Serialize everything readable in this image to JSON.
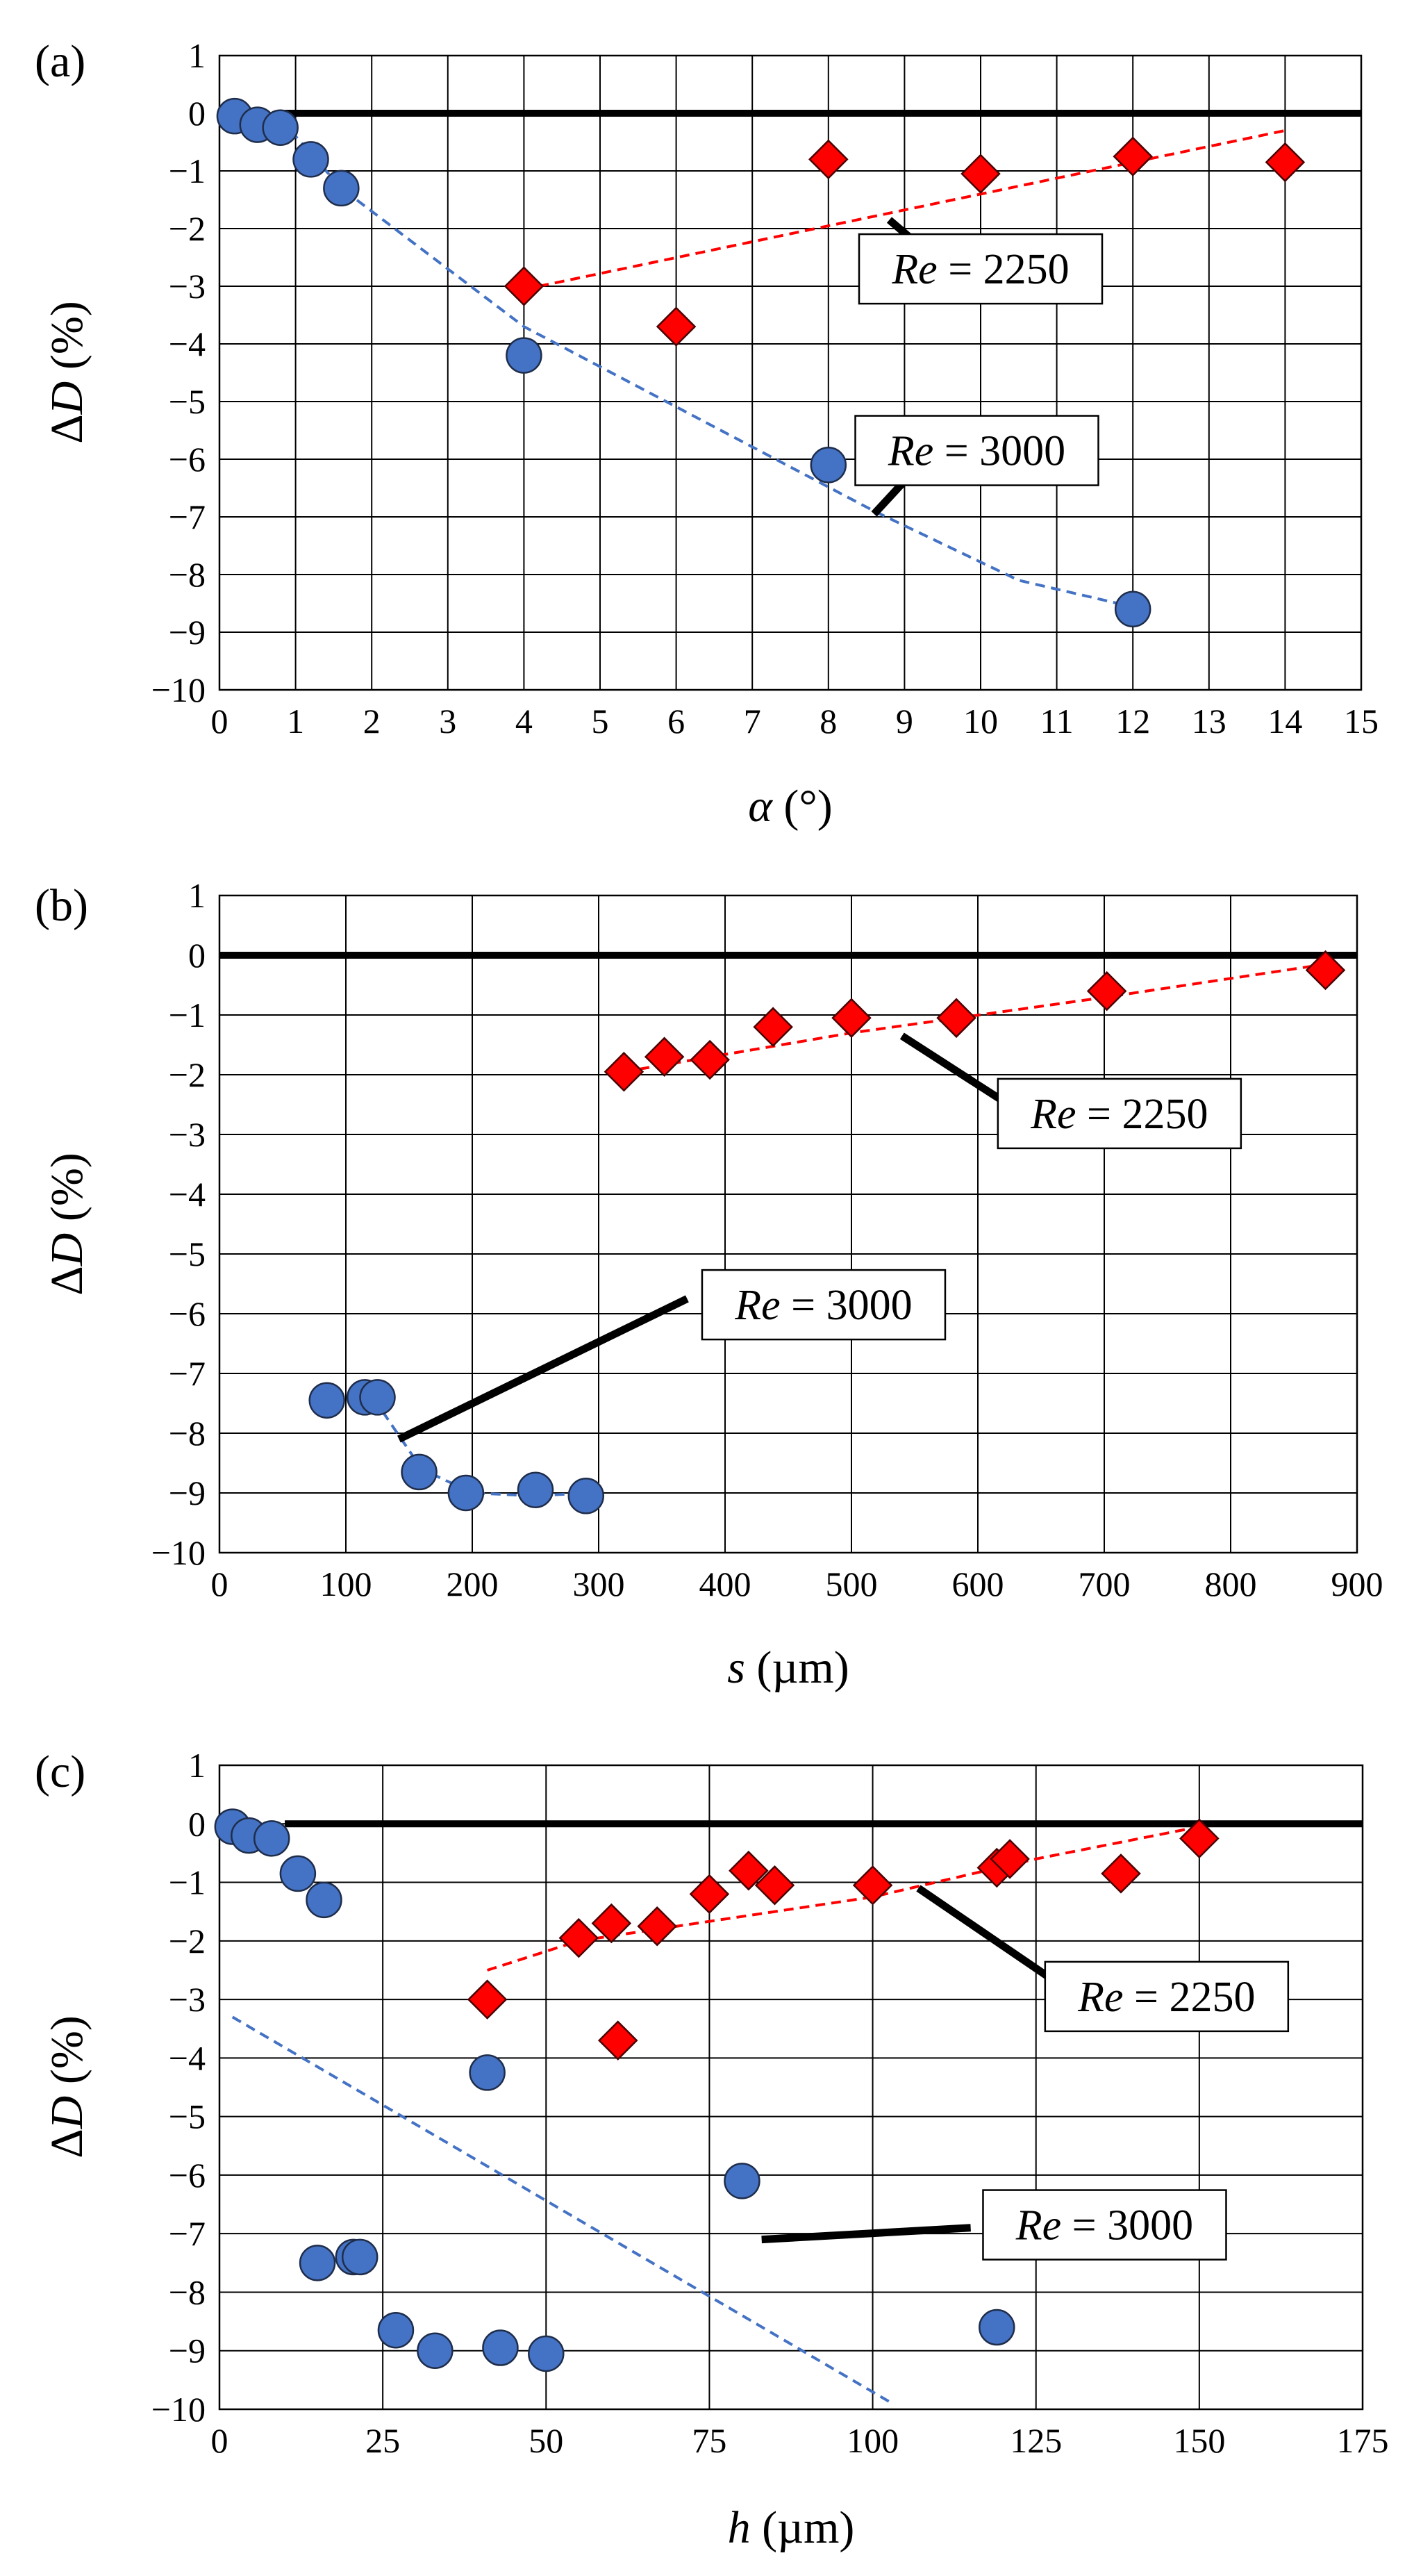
{
  "figure": {
    "panel_labels": [
      "(a)",
      "(b)",
      "(c)"
    ]
  },
  "colors": {
    "blue": "#4472C4",
    "red": "#FF0000",
    "black": "#000000",
    "grid": "#000000"
  },
  "chart_data": [
    {
      "type": "scatter",
      "panel": "(a)",
      "xlabel_var": "α",
      "xlabel_unit": " (°)",
      "ylabel": "ΔD (%)",
      "ylabel_var": "D",
      "ylabel_unit": " (%)",
      "xlim": [
        0,
        15
      ],
      "ylim": [
        -10,
        1
      ],
      "xticks": [
        0,
        1,
        2,
        3,
        4,
        5,
        6,
        7,
        8,
        9,
        10,
        11,
        12,
        13,
        14,
        15
      ],
      "yticks": [
        1,
        0,
        -1,
        -2,
        -3,
        -4,
        -5,
        -6,
        -7,
        -8,
        -9,
        -10
      ],
      "grid": true,
      "reference_line": {
        "y": 0,
        "x": [
          0.8,
          15
        ]
      },
      "series": [
        {
          "name": "Re = 3000",
          "marker": "circle",
          "color": "#4472C4",
          "points": [
            [
              0.2,
              -0.05
            ],
            [
              0.5,
              -0.2
            ],
            [
              0.8,
              -0.25
            ],
            [
              1.2,
              -0.8
            ],
            [
              1.6,
              -1.3
            ],
            [
              4,
              -4.2
            ],
            [
              8,
              -6.1
            ],
            [
              12,
              -8.6
            ]
          ],
          "trend": [
            [
              0.8,
              -0.1
            ],
            [
              1.6,
              -1.3
            ],
            [
              4,
              -3.7
            ],
            [
              8.6,
              -6.9
            ],
            [
              10.5,
              -8.1
            ],
            [
              11.8,
              -8.5
            ]
          ]
        },
        {
          "name": "Re = 2250",
          "marker": "diamond",
          "color": "#FF0000",
          "points": [
            [
              4,
              -3.0
            ],
            [
              6,
              -3.7
            ],
            [
              8,
              -0.8
            ],
            [
              10,
              -1.05
            ],
            [
              12,
              -0.75
            ],
            [
              14,
              -0.85
            ]
          ],
          "trend": [
            [
              4.2,
              -3.0
            ],
            [
              14,
              -0.3
            ]
          ]
        }
      ],
      "annotations": [
        {
          "label": "= 2250",
          "var": "Re",
          "box": [
            10.0,
            -2.7
          ],
          "line": [
            [
              9.6,
              -2.75
            ],
            [
              8.8,
              -1.85
            ]
          ]
        },
        {
          "label": "= 3000",
          "var": "Re",
          "box": [
            9.95,
            -5.85
          ],
          "line": [
            [
              9.3,
              -5.95
            ],
            [
              8.6,
              -6.95
            ]
          ]
        }
      ]
    },
    {
      "type": "scatter",
      "panel": "(b)",
      "xlabel_var": "s",
      "xlabel_unit": " (µm)",
      "ylabel": "ΔD (%)",
      "ylabel_var": "D",
      "ylabel_unit": " (%)",
      "xlim": [
        0,
        900
      ],
      "ylim": [
        -10,
        1
      ],
      "xticks": [
        0,
        100,
        200,
        300,
        400,
        500,
        600,
        700,
        800,
        900
      ],
      "yticks": [
        1,
        0,
        -1,
        -2,
        -3,
        -4,
        -5,
        -6,
        -7,
        -8,
        -9,
        -10
      ],
      "grid": true,
      "reference_line": {
        "y": 0,
        "x": [
          0,
          900
        ]
      },
      "series": [
        {
          "name": "Re = 3000",
          "marker": "circle",
          "color": "#4472C4",
          "points": [
            [
              85,
              -7.45
            ],
            [
              115,
              -7.4
            ],
            [
              125,
              -7.4
            ],
            [
              158,
              -8.65
            ],
            [
              195,
              -9.0
            ],
            [
              250,
              -8.95
            ],
            [
              290,
              -9.05
            ]
          ],
          "trend": [
            [
              115,
              -7.2
            ],
            [
              160,
              -8.6
            ],
            [
              200,
              -9.0
            ],
            [
              250,
              -9.05
            ],
            [
              290,
              -9.0
            ]
          ]
        },
        {
          "name": "Re = 2250",
          "marker": "diamond",
          "color": "#FF0000",
          "points": [
            [
              320,
              -1.95
            ],
            [
              352,
              -1.7
            ],
            [
              388,
              -1.75
            ],
            [
              438,
              -1.2
            ],
            [
              500,
              -1.05
            ],
            [
              583,
              -1.05
            ],
            [
              702,
              -0.6
            ],
            [
              875,
              -0.25
            ]
          ],
          "trend": [
            [
              320,
              -1.95
            ],
            [
              500,
              -1.3
            ],
            [
              702,
              -0.7
            ],
            [
              875,
              -0.15
            ]
          ]
        }
      ],
      "annotations": [
        {
          "label": "= 2250",
          "var": "Re",
          "box": [
            712,
            -2.65
          ],
          "line": [
            [
              650,
              -2.85
            ],
            [
              540,
              -1.35
            ]
          ]
        },
        {
          "label": "= 3000",
          "var": "Re",
          "box": [
            478,
            -5.85
          ],
          "line": [
            [
              370,
              -5.75
            ],
            [
              142,
              -8.1
            ]
          ]
        }
      ]
    },
    {
      "type": "scatter",
      "panel": "(c)",
      "xlabel_var": "h",
      "xlabel_unit": " (µm)",
      "ylabel": "ΔD (%)",
      "ylabel_var": "D",
      "ylabel_unit": " (%)",
      "xlim": [
        0,
        175
      ],
      "ylim": [
        -10,
        1
      ],
      "xticks": [
        0,
        25,
        50,
        75,
        100,
        125,
        150,
        175
      ],
      "yticks": [
        1,
        0,
        -1,
        -2,
        -3,
        -4,
        -5,
        -6,
        -7,
        -8,
        -9,
        -10
      ],
      "grid": true,
      "reference_line": {
        "y": 0,
        "x": [
          10,
          175
        ]
      },
      "series": [
        {
          "name": "Re = 3000",
          "marker": "circle",
          "color": "#4472C4",
          "points": [
            [
              2,
              -0.05
            ],
            [
              4.5,
              -0.2
            ],
            [
              8,
              -0.25
            ],
            [
              12,
              -0.85
            ],
            [
              16,
              -1.3
            ],
            [
              41,
              -4.25
            ],
            [
              80,
              -6.1
            ],
            [
              119,
              -8.6
            ],
            [
              15,
              -7.5
            ],
            [
              20.5,
              -7.4
            ],
            [
              21.5,
              -7.4
            ],
            [
              27,
              -8.65
            ],
            [
              33,
              -9.0
            ],
            [
              43,
              -8.95
            ],
            [
              50,
              -9.05
            ]
          ],
          "trend": [
            [
              2,
              -3.3
            ],
            [
              103,
              -9.9
            ]
          ]
        },
        {
          "name": "Re = 2250",
          "marker": "diamond",
          "color": "#FF0000",
          "points": [
            [
              41,
              -3.0
            ],
            [
              61,
              -3.7
            ],
            [
              55,
              -1.95
            ],
            [
              60,
              -1.7
            ],
            [
              67,
              -1.75
            ],
            [
              75,
              -1.2
            ],
            [
              81,
              -0.8
            ],
            [
              85,
              -1.05
            ],
            [
              100,
              -1.05
            ],
            [
              119,
              -0.75
            ],
            [
              121,
              -0.6
            ],
            [
              138,
              -0.85
            ],
            [
              150,
              -0.25
            ]
          ],
          "trend": [
            [
              41,
              -2.5
            ],
            [
              55,
              -2.0
            ],
            [
              100,
              -1.25
            ],
            [
              125,
              -0.6
            ],
            [
              150,
              -0.05
            ]
          ]
        }
      ],
      "annotations": [
        {
          "label": "= 2250",
          "var": "Re",
          "box": [
            145,
            -2.95
          ],
          "line": [
            [
              130,
              -2.85
            ],
            [
              107,
              -1.1
            ]
          ]
        },
        {
          "label": "= 3000",
          "var": "Re",
          "box": [
            135.5,
            -6.85
          ],
          "line": [
            [
              115,
              -6.9
            ],
            [
              83,
              -7.1
            ]
          ]
        }
      ]
    }
  ]
}
